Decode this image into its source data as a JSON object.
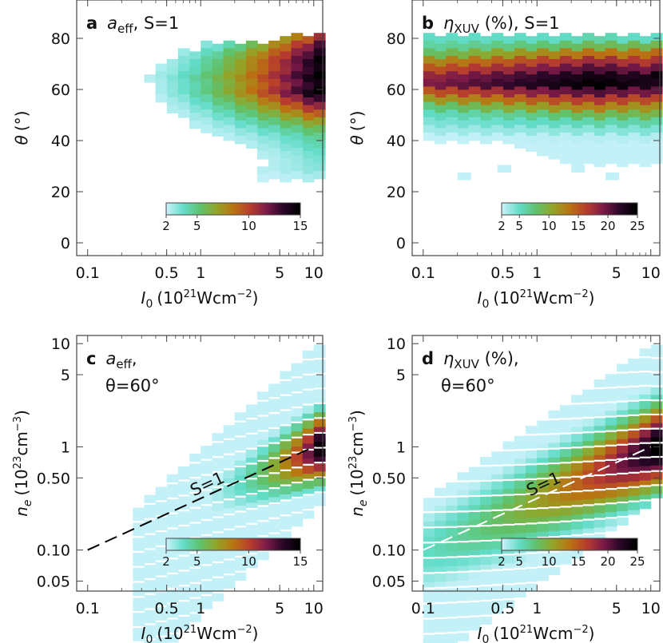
{
  "chart_data": [
    {
      "panel": "a",
      "type": "heatmap",
      "title_parts": {
        "letter": "a",
        "quantity": "a",
        "quantity_sub": "eff",
        "condition": ", S=1"
      },
      "xlabel": {
        "symbol": "I",
        "sub": "0",
        "unit_pre": "(10",
        "unit_sup": "21",
        "unit_mid": "Wcm",
        "unit_sup2": "−2",
        "unit_post": ")"
      },
      "ylabel": {
        "symbol": "θ",
        "unit": "(°)"
      },
      "x_scale": "log",
      "xlim": [
        0.08,
        12
      ],
      "ylim": [
        -5,
        95
      ],
      "x_ticks": [
        0.1,
        0.5,
        1,
        5,
        10
      ],
      "x_tick_labels": [
        "0.1",
        "0.5",
        "1",
        "5",
        "10"
      ],
      "y_ticks": [
        0,
        20,
        40,
        60,
        80
      ],
      "y_tick_labels": [
        "0",
        "20",
        "40",
        "60",
        "80"
      ],
      "colorbar": {
        "range": [
          2,
          15
        ],
        "ticks": [
          2,
          5,
          10,
          15
        ],
        "tick_labels": [
          "2",
          "5",
          "10",
          "15"
        ],
        "colors": [
          "#c4f1f8",
          "#62dcc8",
          "#5fc26c",
          "#93a428",
          "#ba7412",
          "#b83d2e",
          "#7d1b48",
          "#2a0728",
          "#000000"
        ]
      },
      "rows": [
        {
          "y": 80,
          "x_from": 5.0,
          "x_to": 9.5,
          "v_low": 7.5,
          "v_high": 10.5
        },
        {
          "y": 77,
          "x_from": 1.0,
          "x_to": 9.5,
          "v_low": 3.0,
          "v_high": 12.5
        },
        {
          "y": 74,
          "x_from": 0.55,
          "x_to": 9.5,
          "v_low": 2.5,
          "v_high": 13.5
        },
        {
          "y": 71,
          "x_from": 0.45,
          "x_to": 9.5,
          "v_low": 2.5,
          "v_high": 14.5
        },
        {
          "y": 68,
          "x_from": 0.35,
          "x_to": 9.5,
          "v_low": 2.2,
          "v_high": 14.0
        },
        {
          "y": 65,
          "x_from": 0.3,
          "x_to": 9.5,
          "v_low": 2.2,
          "v_high": 15.0
        },
        {
          "y": 62,
          "x_from": 0.32,
          "x_to": 9.5,
          "v_low": 2.2,
          "v_high": 14.0
        },
        {
          "y": 59,
          "x_from": 0.33,
          "x_to": 9.5,
          "v_low": 2.2,
          "v_high": 15.0
        },
        {
          "y": 56,
          "x_from": 0.38,
          "x_to": 9.5,
          "v_low": 2.2,
          "v_high": 13.0
        },
        {
          "y": 53,
          "x_from": 0.45,
          "x_to": 9.5,
          "v_low": 2.2,
          "v_high": 11.0
        },
        {
          "y": 50,
          "x_from": 0.55,
          "x_to": 9.5,
          "v_low": 2.2,
          "v_high": 9.0
        },
        {
          "y": 47,
          "x_from": 0.7,
          "x_to": 9.5,
          "v_low": 2.2,
          "v_high": 7.0
        },
        {
          "y": 44,
          "x_from": 1.0,
          "x_to": 9.5,
          "v_low": 2.2,
          "v_high": 5.5
        },
        {
          "y": 41,
          "x_from": 1.5,
          "x_to": 9.5,
          "v_low": 2.2,
          "v_high": 4.5
        },
        {
          "y": 38,
          "x_from": 2.0,
          "x_to": 9.5,
          "v_low": 2.2,
          "v_high": 4.0
        },
        {
          "y": 35,
          "x_from": 2.8,
          "x_to": 9.5,
          "v_low": 2.2,
          "v_high": 3.5
        },
        {
          "y": 32,
          "x_from": 3.3,
          "x_to": 9.5,
          "v_low": 2.2,
          "v_high": 3.2
        },
        {
          "y": 29,
          "x_from": 3.0,
          "x_to": 9.5,
          "v_low": 2.2,
          "v_high": 3.0
        },
        {
          "y": 26,
          "x_from": 3.0,
          "x_to": 9.5,
          "v_low": 2.0,
          "v_high": 2.5
        }
      ]
    },
    {
      "panel": "b",
      "type": "heatmap",
      "title_parts": {
        "letter": "b",
        "quantity": "η",
        "quantity_sub": "XUV",
        "condition": " (%), S=1"
      },
      "xlabel": {
        "symbol": "I",
        "sub": "0",
        "unit_pre": "(10",
        "unit_sup": "21",
        "unit_mid": "Wcm",
        "unit_sup2": "−2",
        "unit_post": ")"
      },
      "ylabel": {
        "symbol": "θ",
        "unit": "(°)"
      },
      "x_scale": "log",
      "xlim": [
        0.08,
        12
      ],
      "ylim": [
        -5,
        95
      ],
      "x_ticks": [
        0.1,
        0.5,
        1,
        5,
        10
      ],
      "x_tick_labels": [
        "0.1",
        "0.5",
        "1",
        "5",
        "10"
      ],
      "y_ticks": [
        0,
        20,
        40,
        60,
        80
      ],
      "y_tick_labels": [
        "0",
        "20",
        "40",
        "60",
        "80"
      ],
      "colorbar": {
        "range": [
          2,
          25
        ],
        "ticks": [
          2,
          5,
          10,
          15,
          20,
          25
        ],
        "tick_labels": [
          "2",
          "5",
          "10",
          "15",
          "20",
          "25"
        ],
        "colors": [
          "#c4f1f8",
          "#62dcc8",
          "#5fc26c",
          "#93a428",
          "#ba7412",
          "#b83d2e",
          "#7d1b48",
          "#2a0728",
          "#000000"
        ]
      },
      "rows": [
        {
          "y": 80,
          "x_from": 0.1,
          "x_to": 9.5,
          "v_low": 5,
          "v_high": 5,
          "peak_x": 3.0,
          "peak_v": 6
        },
        {
          "y": 77,
          "x_from": 0.1,
          "x_to": 9.5,
          "v_low": 6,
          "v_high": 9,
          "peak_x": 3.0,
          "peak_v": 9
        },
        {
          "y": 74,
          "x_from": 0.1,
          "x_to": 9.5,
          "v_low": 7,
          "v_high": 14,
          "peak_x": 3.0,
          "peak_v": 14
        },
        {
          "y": 71,
          "x_from": 0.1,
          "x_to": 9.5,
          "v_low": 8,
          "v_high": 17,
          "peak_x": 3.0,
          "peak_v": 18
        },
        {
          "y": 68,
          "x_from": 0.1,
          "x_to": 9.5,
          "v_low": 9,
          "v_high": 20,
          "peak_x": 3.0,
          "peak_v": 21
        },
        {
          "y": 65,
          "x_from": 0.1,
          "x_to": 9.5,
          "v_low": 10,
          "v_high": 24,
          "peak_x": 3.0,
          "peak_v": 24
        },
        {
          "y": 62,
          "x_from": 0.1,
          "x_to": 9.5,
          "v_low": 10,
          "v_high": 23,
          "peak_x": 3.0,
          "peak_v": 25
        },
        {
          "y": 59,
          "x_from": 0.1,
          "x_to": 9.5,
          "v_low": 9,
          "v_high": 20,
          "peak_x": 3.0,
          "peak_v": 21
        },
        {
          "y": 56,
          "x_from": 0.1,
          "x_to": 9.5,
          "v_low": 8,
          "v_high": 16,
          "peak_x": 3.0,
          "peak_v": 17
        },
        {
          "y": 53,
          "x_from": 0.1,
          "x_to": 9.5,
          "v_low": 7,
          "v_high": 12,
          "peak_x": 3.0,
          "peak_v": 13
        },
        {
          "y": 50,
          "x_from": 0.1,
          "x_to": 9.5,
          "v_low": 5,
          "v_high": 9,
          "peak_x": 3.0,
          "peak_v": 9
        },
        {
          "y": 47,
          "x_from": 0.1,
          "x_to": 9.5,
          "v_low": 4,
          "v_high": 6,
          "peak_x": 3.0,
          "peak_v": 6
        },
        {
          "y": 44,
          "x_from": 0.1,
          "x_to": 9.5,
          "v_low": 3,
          "v_high": 4,
          "peak_x": 3.0,
          "peak_v": 4
        },
        {
          "y": 41,
          "x_from": 0.1,
          "x_to": 9.5,
          "v_low": 2,
          "v_high": 2.5,
          "peak_x": 3.0,
          "peak_v": 2.5
        },
        {
          "y": 38,
          "x_from": 0.55,
          "x_to": 9.5,
          "v_low": 2,
          "v_high": 2,
          "peak_x": 3.0,
          "peak_v": 2
        },
        {
          "y": 35,
          "x_from": 0.8,
          "x_to": 9.5,
          "v_low": 2,
          "v_high": 2,
          "peak_x": 3.0,
          "peak_v": 2
        },
        {
          "y": 32,
          "x_from": 1.5,
          "x_to": 9.5,
          "v_low": 2,
          "v_high": 2,
          "peak_x": 3.0,
          "peak_v": 2
        }
      ],
      "extra_cells": [
        {
          "x": 0.2,
          "y": 26,
          "v": 2
        },
        {
          "x": 0.45,
          "y": 29,
          "v": 2
        },
        {
          "x": 4.0,
          "y": 26,
          "v": 2
        },
        {
          "x": 2.0,
          "y": 29,
          "v": 2
        }
      ]
    },
    {
      "panel": "c",
      "type": "heatmap",
      "title_parts": {
        "letter": "c",
        "quantity": "a",
        "quantity_sub": "eff",
        "condition": ",",
        "line2": "θ=60°"
      },
      "xlabel": {
        "symbol": "I",
        "sub": "0",
        "unit_pre": "(10",
        "unit_sup": "21",
        "unit_mid": "Wcm",
        "unit_sup2": "−2",
        "unit_post": ")"
      },
      "ylabel": {
        "symbol": "n",
        "sub": "e",
        "unit_pre": "(10",
        "unit_sup": "23",
        "unit_mid": "cm",
        "unit_sup2": "−3",
        "unit_post": ")"
      },
      "x_scale": "log",
      "y_scale": "log",
      "xlim": [
        0.08,
        12
      ],
      "ylim": [
        0.04,
        12
      ],
      "x_ticks": [
        0.1,
        0.5,
        1,
        5,
        10
      ],
      "x_tick_labels": [
        "0.1",
        "0.5",
        "1",
        "5",
        "10"
      ],
      "y_ticks": [
        0.05,
        0.1,
        0.5,
        1,
        5,
        10
      ],
      "y_tick_labels": [
        "0.05",
        "0.10",
        "0.50",
        "1",
        "5",
        "10"
      ],
      "colorbar": {
        "range": [
          2,
          15
        ],
        "ticks": [
          2,
          5,
          10,
          15
        ],
        "tick_labels": [
          "2",
          "5",
          "10",
          "15"
        ],
        "colors": [
          "#c4f1f8",
          "#62dcc8",
          "#5fc26c",
          "#93a428",
          "#ba7412",
          "#b83d2e",
          "#7d1b48",
          "#2a0728",
          "#000000"
        ]
      },
      "region": {
        "x_min": 0.2,
        "x_max": 9.5,
        "upper_at_xmax": 10,
        "upper_slope": 1.0,
        "lower_at_xmax": 0.25,
        "lower_slope": 1.0,
        "upper_cap": 10
      },
      "value_model": {
        "v_at_xmax_center": 14,
        "x_exponent": 0.85,
        "band_peak_ratio": 0.95,
        "band_width": 1.6,
        "v_floor": 2
      },
      "line": {
        "label": "S=1",
        "x": [
          0.1,
          10
        ],
        "y": [
          0.1,
          1.0
        ],
        "style": "dashed",
        "color": "#000000"
      }
    },
    {
      "panel": "d",
      "type": "heatmap",
      "title_parts": {
        "letter": "d",
        "quantity": "η",
        "quantity_sub": "XUV",
        "condition": " (%),",
        "line2": "θ=60°"
      },
      "xlabel": {
        "symbol": "I",
        "sub": "0",
        "unit_pre": "(10",
        "unit_sup": "21",
        "unit_mid": "Wcm",
        "unit_sup2": "−2",
        "unit_post": ")"
      },
      "ylabel": {
        "symbol": "n",
        "sub": "e",
        "unit_pre": "(10",
        "unit_sup": "23",
        "unit_mid": "cm",
        "unit_sup2": "−3",
        "unit_post": ")"
      },
      "x_scale": "log",
      "y_scale": "log",
      "xlim": [
        0.08,
        12
      ],
      "ylim": [
        0.04,
        12
      ],
      "x_ticks": [
        0.1,
        0.5,
        1,
        5,
        10
      ],
      "x_tick_labels": [
        "0.1",
        "0.5",
        "1",
        "5",
        "10"
      ],
      "y_ticks": [
        0.05,
        0.1,
        0.5,
        1,
        5,
        10
      ],
      "y_tick_labels": [
        "0.05",
        "0.10",
        "0.50",
        "1",
        "5",
        "10"
      ],
      "colorbar": {
        "range": [
          2,
          25
        ],
        "ticks": [
          2,
          5,
          10,
          15,
          20,
          25
        ],
        "tick_labels": [
          "2",
          "5",
          "10",
          "15",
          "20",
          "25"
        ],
        "colors": [
          "#c4f1f8",
          "#62dcc8",
          "#5fc26c",
          "#93a428",
          "#ba7412",
          "#b83d2e",
          "#7d1b48",
          "#2a0728",
          "#000000"
        ]
      },
      "region": {
        "x_min": 0.1,
        "x_max": 9.5,
        "upper_at_xmax": 10,
        "upper_slope": 0.75,
        "lower_at_xmax": 0.3,
        "lower_slope": 0.8,
        "upper_cap": 10
      },
      "value_model": {
        "v_at_xmax_center": 25,
        "x_exponent": 0.35,
        "band_peak_ratio": 1.05,
        "band_width": 1.3,
        "v_floor": 2
      },
      "line": {
        "label": "S=1",
        "x": [
          0.1,
          10
        ],
        "y": [
          0.1,
          1.0
        ],
        "style": "dashed",
        "color": "#ffffff"
      }
    }
  ]
}
